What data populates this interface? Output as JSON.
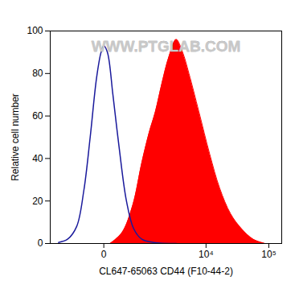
{
  "chart_data": {
    "type": "line",
    "annotation": "WWW.PTGLAB.COM",
    "x_label": "CL647-65063 CD44 (F10-44-2)",
    "y_label": "Relative cell number",
    "log": "x",
    "xlim": [
      -1500,
      160000
    ],
    "xticks": [
      0,
      {
        "value": 10000,
        "label": "10⁴"
      },
      {
        "value": 100000,
        "label": "10⁵"
      }
    ],
    "ylim": [
      0,
      100
    ],
    "yticks": [
      0,
      20,
      40,
      60,
      80,
      100
    ],
    "grid": false,
    "series": [
      {
        "type": "area",
        "color": "#ff0000",
        "x": [
          65,
          233,
          466,
          745,
          1045,
          1380,
          1803,
          2420,
          3225,
          4130,
          5260,
          7660,
          11480,
          16600,
          24750,
          36850,
          56650,
          87000
        ],
        "values": [
          0,
          5,
          18,
          38,
          52,
          62,
          75,
          88,
          96,
          90,
          80,
          62,
          42,
          26,
          14,
          7,
          2,
          0
        ]
      },
      {
        "type": "line",
        "color": "#1a1a9c",
        "x": [
          -1045,
          -683,
          -420,
          -266,
          -160,
          -75,
          -26,
          0,
          35,
          98,
          187,
          319,
          489,
          745,
          1277,
          3225
        ],
        "values": [
          0.5,
          2,
          8,
          25,
          50,
          78,
          90,
          93,
          90,
          70,
          45,
          20,
          7,
          2,
          0.5,
          0
        ]
      }
    ]
  }
}
